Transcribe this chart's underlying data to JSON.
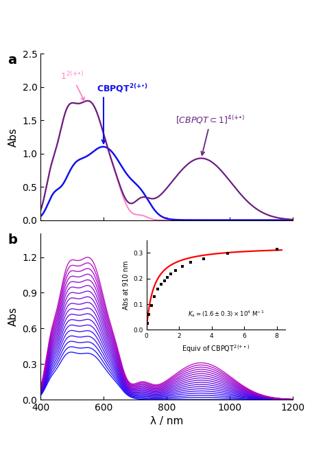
{
  "panel_a": {
    "ylim": [
      0.0,
      2.5
    ],
    "yticks": [
      0.0,
      0.5,
      1.0,
      1.5,
      2.0,
      2.5
    ],
    "ylabel": "Abs",
    "label": "a"
  },
  "panel_b": {
    "ylim": [
      0.0,
      1.4
    ],
    "yticks": [
      0.0,
      0.3,
      0.6,
      0.9,
      1.2
    ],
    "ylabel": "Abs",
    "label": "b"
  },
  "xlim": [
    400,
    1200
  ],
  "xticks": [
    400,
    600,
    800,
    1000,
    1200
  ],
  "xlabel": "λ / nm",
  "pink_color": "#FF82C8",
  "blue_color": "#1010EE",
  "purple_color": "#6B2080",
  "inset": {
    "x_data": [
      0.05,
      0.15,
      0.3,
      0.5,
      0.7,
      0.9,
      1.1,
      1.3,
      1.5,
      1.8,
      2.2,
      2.7,
      3.5,
      5.0,
      8.0
    ],
    "y_data": [
      0.025,
      0.06,
      0.095,
      0.13,
      0.158,
      0.178,
      0.192,
      0.205,
      0.218,
      0.23,
      0.248,
      0.263,
      0.278,
      0.298,
      0.313
    ],
    "half_sat": 0.45,
    "Abs_max": 0.328,
    "xlabel": "Equiv of CBPQT$^{2(+\\bullet)}$",
    "ylabel": "Abs at 910 nm",
    "annotation": "$K_{\\mathrm{a}} = (1.6 \\pm 0.3) \\times 10^{4}$ M$^{-1}$"
  }
}
